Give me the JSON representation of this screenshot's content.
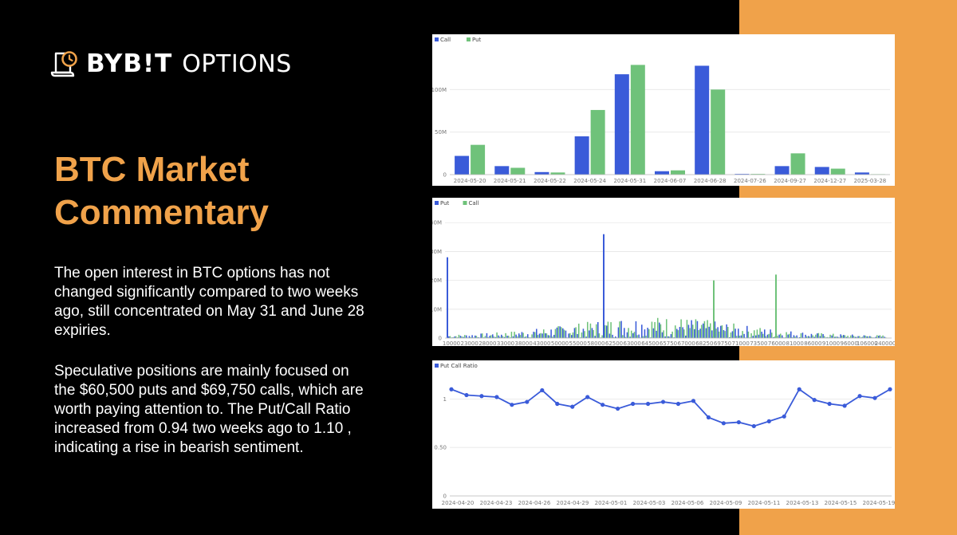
{
  "header": {
    "brand": "BYB!T",
    "brand_sub": "OPTIONS",
    "logo_icon": "scroll-clock-icon"
  },
  "commentary": {
    "title": "BTC Market Commentary",
    "paragraph1": "The open interest in BTC options has not changed significantly compared to two weeks ago, still concentrated on May 31 and June 28 expiries.",
    "paragraph2": "Speculative positions are mainly focused on the $60,500 puts and $69,750 calls, which are worth paying attention to. The Put/Call Ratio increased from 0.94 two weeks ago to 1.10 , indicating a rise in bearish sentiment."
  },
  "colors": {
    "accent": "#f0a24a",
    "background": "#000000",
    "blue": "#3a5bd9",
    "green": "#6fc27a"
  },
  "chart_data": [
    {
      "type": "bar",
      "legend_position": "top-left",
      "grid": true,
      "categories": [
        "2024-05-20",
        "2024-05-21",
        "2024-05-22",
        "2024-05-24",
        "2024-05-31",
        "2024-06-07",
        "2024-06-28",
        "2024-07-26",
        "2024-09-27",
        "2024-12-27",
        "2025-03-28"
      ],
      "series": [
        {
          "name": "Call",
          "color": "#3a5bd9",
          "values": [
            22,
            10,
            3,
            45,
            118,
            4,
            128,
            0.8,
            10,
            9,
            2.5
          ]
        },
        {
          "name": "Put",
          "color": "#6fc27a",
          "values": [
            35,
            8,
            2.5,
            76,
            129,
            5,
            100,
            0.8,
            25,
            7,
            0.5
          ]
        }
      ],
      "unit": "M",
      "yticks": [
        0,
        50,
        100
      ],
      "ytick_labels": [
        "0",
        "50M",
        "100M"
      ],
      "ylim": [
        0,
        150
      ]
    },
    {
      "type": "bar",
      "legend_position": "top-left",
      "grid": true,
      "series": [
        {
          "name": "Put",
          "color": "#3a5bd9"
        },
        {
          "name": "Call",
          "color": "#6fc27a"
        }
      ],
      "xtick_labels": [
        "10000",
        "23000",
        "28000",
        "33000",
        "38000",
        "43000",
        "50000",
        "55000",
        "58000",
        "62500",
        "63000",
        "64500",
        "65750",
        "67000",
        "68250",
        "69750",
        "71000",
        "73500",
        "76000",
        "81000",
        "86000",
        "91000",
        "96000",
        "106000",
        "240000"
      ],
      "highlight_strikes": [
        {
          "strike": "10000",
          "series": "Put",
          "value": 28
        },
        {
          "strike": "60500",
          "series": "Put",
          "value": 36
        },
        {
          "strike": "69750",
          "series": "Call",
          "value": 20
        },
        {
          "strike": "81000",
          "series": "Call",
          "value": 22
        }
      ],
      "unit": "M",
      "yticks": [
        0,
        10,
        20,
        30,
        40
      ],
      "ytick_labels": [
        "0",
        "10M",
        "20M",
        "30M",
        "40M"
      ],
      "ylim": [
        0,
        42
      ]
    },
    {
      "type": "line",
      "legend_position": "top-left",
      "grid": true,
      "series": [
        {
          "name": "Put Call Ratio",
          "color": "#3a5bd9",
          "values": [
            1.1,
            1.04,
            1.03,
            1.02,
            0.94,
            0.97,
            1.09,
            0.95,
            0.92,
            1.02,
            0.94,
            0.9,
            0.95,
            0.95,
            0.97,
            0.95,
            0.98,
            0.81,
            0.75,
            0.76,
            0.72,
            0.77,
            0.82,
            1.1,
            0.99,
            0.95,
            0.93,
            1.03,
            1.01,
            1.1
          ]
        }
      ],
      "xtick_labels": [
        "2024-04-20",
        "2024-04-23",
        "2024-04-26",
        "2024-04-29",
        "2024-05-01",
        "2024-05-03",
        "2024-05-06",
        "2024-05-09",
        "2024-05-11",
        "2024-05-13",
        "2024-05-15",
        "2024-05-19"
      ],
      "yticks": [
        0,
        0.5,
        1
      ],
      "ytick_labels": [
        "0",
        "0.50",
        "1"
      ],
      "ylim": [
        0,
        1.25
      ]
    }
  ]
}
